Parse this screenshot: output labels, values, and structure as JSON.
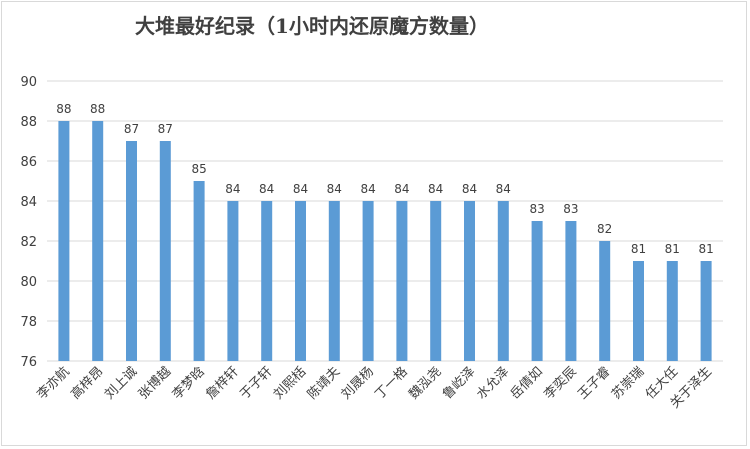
{
  "chart_data": {
    "type": "bar",
    "title": "大堆最好纪录（1小时内还原魔方数量）",
    "categories": [
      "李亦航",
      "高梓昂",
      "刘上诚",
      "张博越",
      "李梦晗",
      "詹梓轩",
      "于子轩",
      "刘熙栝",
      "陈靖夫",
      "刘晟杨",
      "丁一格",
      "魏泓尧",
      "鲁屹泽",
      "水允泽",
      "岳倩如",
      "李奕辰",
      "王子睿",
      "苏崇瑞",
      "任大任",
      "关于泽生"
    ],
    "values": [
      88,
      88,
      87,
      87,
      85,
      84,
      84,
      84,
      84,
      84,
      84,
      84,
      84,
      84,
      83,
      83,
      82,
      81,
      81,
      81
    ],
    "ylim": [
      76,
      90
    ],
    "yticks": [
      76,
      78,
      80,
      82,
      84,
      86,
      88,
      90
    ],
    "grid": true,
    "legend": "none",
    "bar_color": "#5b9bd5",
    "grid_color": "#d9d9d9"
  }
}
